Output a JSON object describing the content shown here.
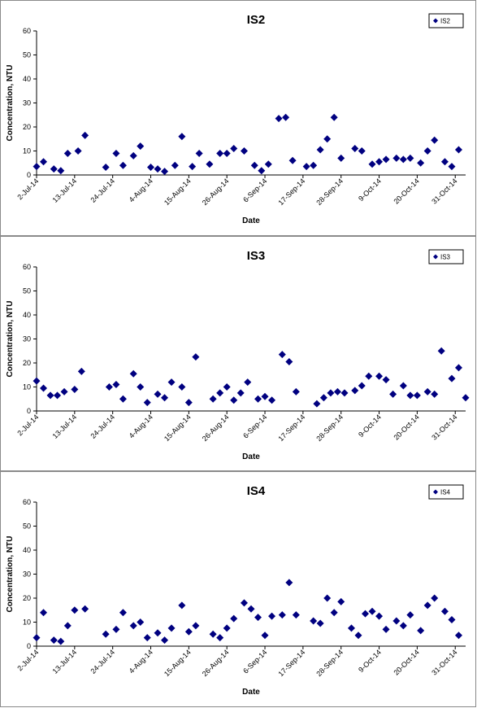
{
  "chart_data": [
    {
      "type": "scatter",
      "title": "IS2",
      "xlabel": "Date",
      "ylabel": "Concentration, NTU",
      "ylim": [
        0,
        60
      ],
      "yticks": [
        "0",
        "10",
        "20",
        "30",
        "40",
        "50",
        "60"
      ],
      "xticks": [
        "2-Jul-14",
        "13-Jul-14",
        "24-Jul-14",
        "4-Aug-14",
        "15-Aug-14",
        "26-Aug-14",
        "6-Sep-14",
        "17-Sep-14",
        "28-Sep-14",
        "9-Oct-14",
        "20-Oct-14",
        "31-Oct-14"
      ],
      "grid": false,
      "legend": "top-right",
      "marker_color": "#000080",
      "series": [
        {
          "name": "IS2",
          "points": [
            [
              "2014-07-02",
              3.5
            ],
            [
              "2014-07-04",
              5.5
            ],
            [
              "2014-07-07",
              2.5
            ],
            [
              "2014-07-09",
              1.8
            ],
            [
              "2014-07-11",
              9
            ],
            [
              "2014-07-14",
              10
            ],
            [
              "2014-07-16",
              16.5
            ],
            [
              "2014-07-22",
              3.2
            ],
            [
              "2014-07-25",
              9
            ],
            [
              "2014-07-27",
              4
            ],
            [
              "2014-07-30",
              8
            ],
            [
              "2014-08-01",
              12
            ],
            [
              "2014-08-04",
              3.2
            ],
            [
              "2014-08-06",
              2.5
            ],
            [
              "2014-08-08",
              1.5
            ],
            [
              "2014-08-11",
              4
            ],
            [
              "2014-08-13",
              16
            ],
            [
              "2014-08-16",
              3.5
            ],
            [
              "2014-08-18",
              9
            ],
            [
              "2014-08-21",
              4.5
            ],
            [
              "2014-08-24",
              9
            ],
            [
              "2014-08-26",
              9
            ],
            [
              "2014-08-28",
              11
            ],
            [
              "2014-08-31",
              10
            ],
            [
              "2014-09-03",
              4
            ],
            [
              "2014-09-05",
              1.8
            ],
            [
              "2014-09-07",
              4.5
            ],
            [
              "2014-09-10",
              23.5
            ],
            [
              "2014-09-12",
              24
            ],
            [
              "2014-09-14",
              6
            ],
            [
              "2014-09-18",
              3.5
            ],
            [
              "2014-09-20",
              4
            ],
            [
              "2014-09-22",
              10.5
            ],
            [
              "2014-09-24",
              15
            ],
            [
              "2014-09-26",
              24
            ],
            [
              "2014-09-28",
              7
            ],
            [
              "2014-10-02",
              11
            ],
            [
              "2014-10-04",
              10
            ],
            [
              "2014-10-07",
              4.5
            ],
            [
              "2014-10-09",
              5.5
            ],
            [
              "2014-10-11",
              6.5
            ],
            [
              "2014-10-14",
              7
            ],
            [
              "2014-10-16",
              6.5
            ],
            [
              "2014-10-18",
              7
            ],
            [
              "2014-10-21",
              5
            ],
            [
              "2014-10-23",
              10
            ],
            [
              "2014-10-25",
              14.5
            ],
            [
              "2014-10-28",
              5.5
            ],
            [
              "2014-10-30",
              3.5
            ],
            [
              "2014-11-01",
              10.5
            ]
          ]
        }
      ]
    },
    {
      "type": "scatter",
      "title": "IS3",
      "xlabel": "Date",
      "ylabel": "Concentration, NTU",
      "ylim": [
        0,
        60
      ],
      "yticks": [
        "0",
        "10",
        "20",
        "30",
        "40",
        "50",
        "60"
      ],
      "xticks": [
        "2-Jul-14",
        "13-Jul-14",
        "24-Jul-14",
        "4-Aug-14",
        "15-Aug-14",
        "26-Aug-14",
        "6-Sep-14",
        "17-Sep-14",
        "28-Sep-14",
        "9-Oct-14",
        "20-Oct-14",
        "31-Oct-14"
      ],
      "grid": false,
      "legend": "top-right",
      "marker_color": "#000080",
      "series": [
        {
          "name": "IS3",
          "points": [
            [
              "2014-07-02",
              12.5
            ],
            [
              "2014-07-04",
              9.5
            ],
            [
              "2014-07-06",
              6.5
            ],
            [
              "2014-07-08",
              6.5
            ],
            [
              "2014-07-10",
              8
            ],
            [
              "2014-07-13",
              9
            ],
            [
              "2014-07-15",
              16.5
            ],
            [
              "2014-07-23",
              10
            ],
            [
              "2014-07-25",
              11
            ],
            [
              "2014-07-27",
              5
            ],
            [
              "2014-07-30",
              15.5
            ],
            [
              "2014-08-01",
              10
            ],
            [
              "2014-08-03",
              3.5
            ],
            [
              "2014-08-06",
              7
            ],
            [
              "2014-08-08",
              5.5
            ],
            [
              "2014-08-10",
              12
            ],
            [
              "2014-08-13",
              10
            ],
            [
              "2014-08-15",
              3.5
            ],
            [
              "2014-08-17",
              22.5
            ],
            [
              "2014-08-22",
              5
            ],
            [
              "2014-08-24",
              7.5
            ],
            [
              "2014-08-26",
              10
            ],
            [
              "2014-08-28",
              4.5
            ],
            [
              "2014-08-30",
              7.5
            ],
            [
              "2014-09-01",
              12
            ],
            [
              "2014-09-04",
              5
            ],
            [
              "2014-09-06",
              6
            ],
            [
              "2014-09-08",
              4.5
            ],
            [
              "2014-09-11",
              23.5
            ],
            [
              "2014-09-13",
              20.5
            ],
            [
              "2014-09-15",
              8
            ],
            [
              "2014-09-21",
              3
            ],
            [
              "2014-09-23",
              5.5
            ],
            [
              "2014-09-25",
              7.5
            ],
            [
              "2014-09-27",
              8
            ],
            [
              "2014-09-29",
              7.5
            ],
            [
              "2014-10-02",
              8.5
            ],
            [
              "2014-10-04",
              10.5
            ],
            [
              "2014-10-06",
              14.5
            ],
            [
              "2014-10-09",
              14.5
            ],
            [
              "2014-10-11",
              13
            ],
            [
              "2014-10-13",
              7
            ],
            [
              "2014-10-16",
              10.5
            ],
            [
              "2014-10-18",
              6.5
            ],
            [
              "2014-10-20",
              6.5
            ],
            [
              "2014-10-23",
              8
            ],
            [
              "2014-10-25",
              7
            ],
            [
              "2014-10-27",
              25
            ],
            [
              "2014-10-30",
              13.5
            ],
            [
              "2014-11-01",
              18
            ],
            [
              "2014-11-03",
              5.5
            ]
          ]
        }
      ]
    },
    {
      "type": "scatter",
      "title": "IS4",
      "xlabel": "Date",
      "ylabel": "Concentration, NTU",
      "ylim": [
        0,
        60
      ],
      "yticks": [
        "0",
        "10",
        "20",
        "30",
        "40",
        "50",
        "60"
      ],
      "xticks": [
        "2-Jul-14",
        "13-Jul-14",
        "24-Jul-14",
        "4-Aug-14",
        "15-Aug-14",
        "26-Aug-14",
        "6-Sep-14",
        "17-Sep-14",
        "28-Sep-14",
        "9-Oct-14",
        "20-Oct-14",
        "31-Oct-14"
      ],
      "grid": false,
      "legend": "top-right",
      "marker_color": "#000080",
      "series": [
        {
          "name": "IS4",
          "points": [
            [
              "2014-07-02",
              3.5
            ],
            [
              "2014-07-04",
              14
            ],
            [
              "2014-07-07",
              2.5
            ],
            [
              "2014-07-09",
              2
            ],
            [
              "2014-07-11",
              8.5
            ],
            [
              "2014-07-13",
              15
            ],
            [
              "2014-07-16",
              15.5
            ],
            [
              "2014-07-22",
              5
            ],
            [
              "2014-07-25",
              7
            ],
            [
              "2014-07-27",
              14
            ],
            [
              "2014-07-30",
              8.5
            ],
            [
              "2014-08-01",
              10
            ],
            [
              "2014-08-03",
              3.5
            ],
            [
              "2014-08-06",
              5.5
            ],
            [
              "2014-08-08",
              2.5
            ],
            [
              "2014-08-10",
              7.5
            ],
            [
              "2014-08-13",
              17
            ],
            [
              "2014-08-15",
              6
            ],
            [
              "2014-08-17",
              8.5
            ],
            [
              "2014-08-22",
              5
            ],
            [
              "2014-08-24",
              3.5
            ],
            [
              "2014-08-26",
              7.5
            ],
            [
              "2014-08-28",
              11.5
            ],
            [
              "2014-08-31",
              18
            ],
            [
              "2014-09-02",
              15.5
            ],
            [
              "2014-09-04",
              12
            ],
            [
              "2014-09-06",
              4.5
            ],
            [
              "2014-09-08",
              12.5
            ],
            [
              "2014-09-11",
              13
            ],
            [
              "2014-09-13",
              26.5
            ],
            [
              "2014-09-15",
              13
            ],
            [
              "2014-09-20",
              10.5
            ],
            [
              "2014-09-22",
              9.5
            ],
            [
              "2014-09-24",
              20
            ],
            [
              "2014-09-26",
              14
            ],
            [
              "2014-09-28",
              18.5
            ],
            [
              "2014-10-01",
              7.5
            ],
            [
              "2014-10-03",
              4.5
            ],
            [
              "2014-10-05",
              13.5
            ],
            [
              "2014-10-07",
              14.5
            ],
            [
              "2014-10-09",
              12.5
            ],
            [
              "2014-10-11",
              7
            ],
            [
              "2014-10-14",
              10.5
            ],
            [
              "2014-10-16",
              8.5
            ],
            [
              "2014-10-18",
              13
            ],
            [
              "2014-10-21",
              6.5
            ],
            [
              "2014-10-23",
              17
            ],
            [
              "2014-10-25",
              20
            ],
            [
              "2014-10-28",
              14.5
            ],
            [
              "2014-10-30",
              11
            ],
            [
              "2014-11-01",
              4.5
            ]
          ]
        }
      ]
    }
  ]
}
